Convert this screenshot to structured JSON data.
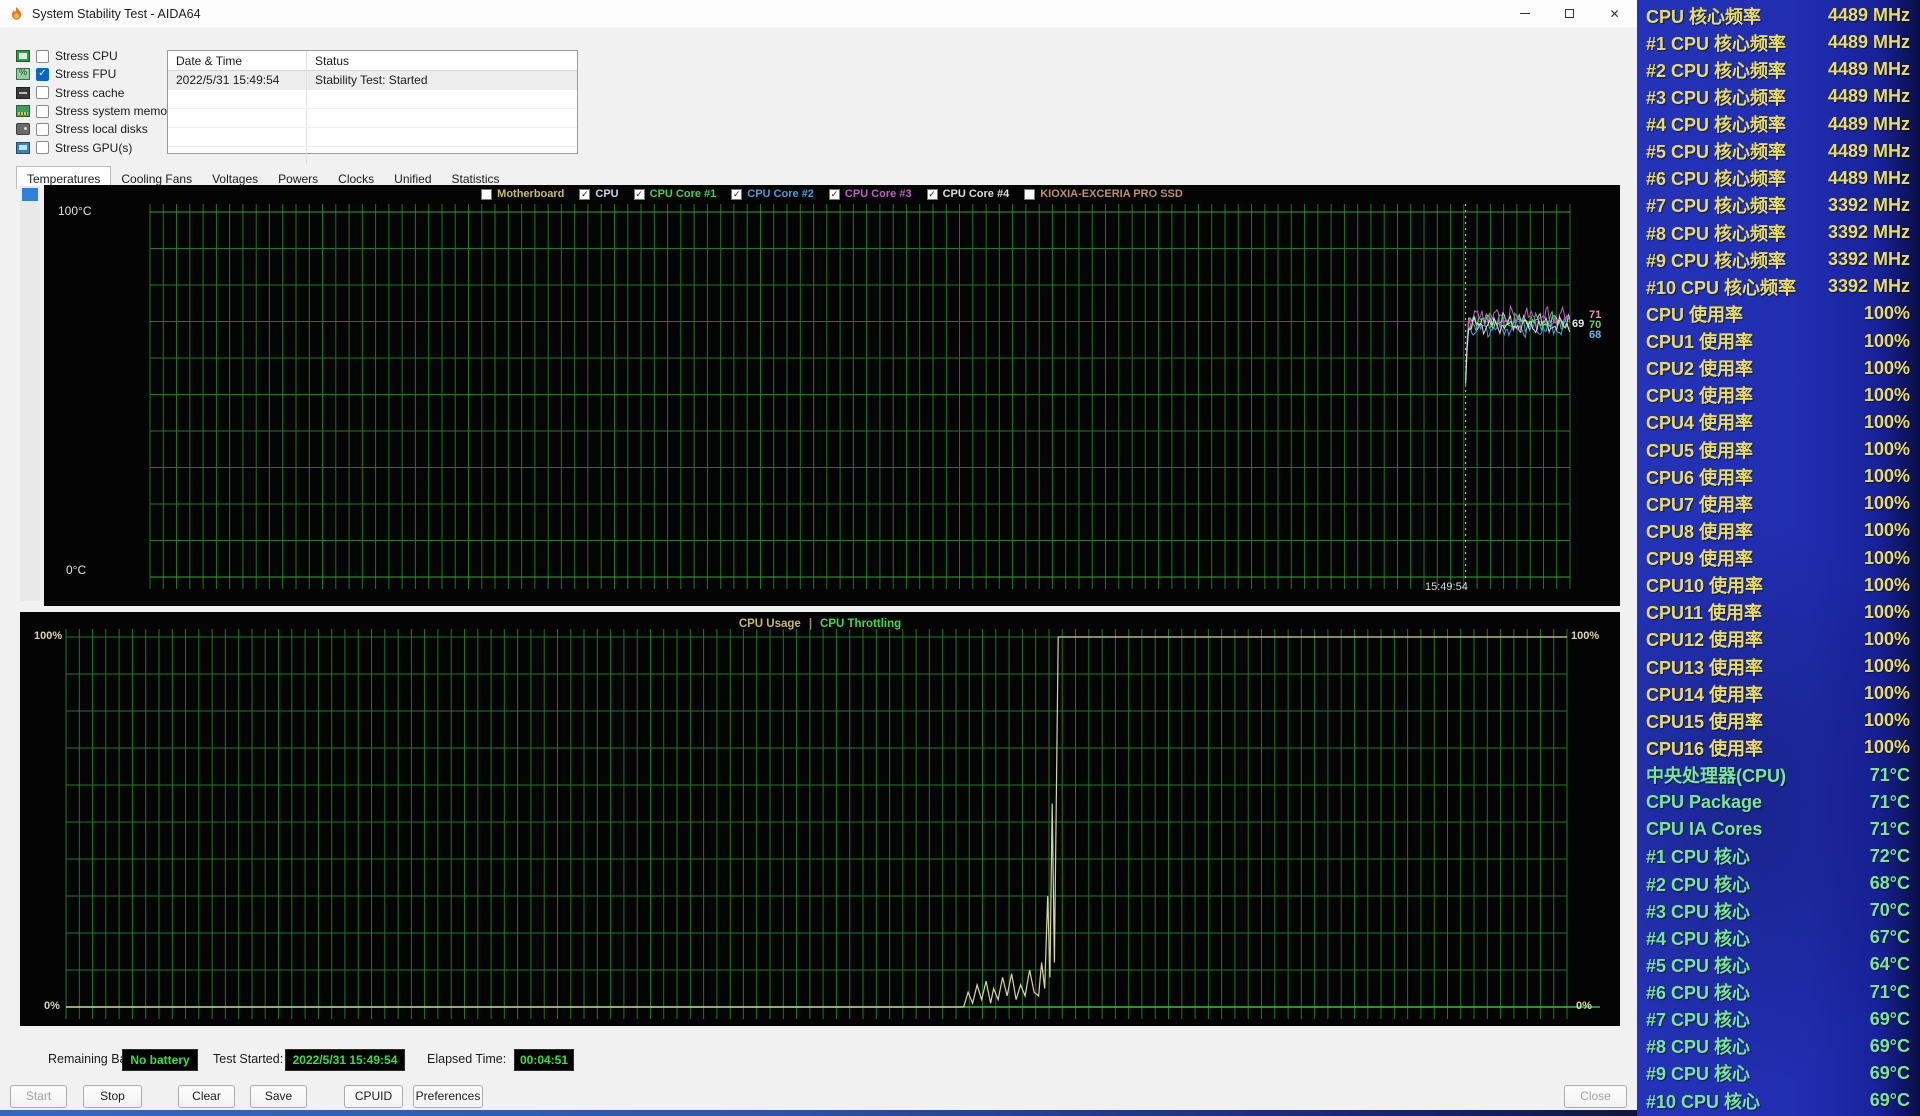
{
  "window": {
    "title": "System Stability Test - AIDA64"
  },
  "stress_options": [
    {
      "label": "Stress CPU",
      "checked": false,
      "icon": "cpu-icon"
    },
    {
      "label": "Stress FPU",
      "checked": true,
      "icon": "fpu-icon"
    },
    {
      "label": "Stress cache",
      "checked": false,
      "icon": "cache-icon"
    },
    {
      "label": "Stress system memory",
      "checked": false,
      "icon": "memory-icon"
    },
    {
      "label": "Stress local disks",
      "checked": false,
      "icon": "disk-icon"
    },
    {
      "label": "Stress GPU(s)",
      "checked": false,
      "icon": "gpu-icon"
    }
  ],
  "log_table": {
    "columns": [
      "Date & Time",
      "Status"
    ],
    "rows": [
      [
        "2022/5/31 15:49:54",
        "Stability Test: Started"
      ]
    ]
  },
  "tabs": [
    {
      "label": "Temperatures",
      "active": true
    },
    {
      "label": "Cooling Fans",
      "active": false
    },
    {
      "label": "Voltages",
      "active": false
    },
    {
      "label": "Powers",
      "active": false
    },
    {
      "label": "Clocks",
      "active": false
    },
    {
      "label": "Unified",
      "active": false
    },
    {
      "label": "Statistics",
      "active": false
    }
  ],
  "temp_chart": {
    "y_top_label": "100°C",
    "y_bottom_label": "0°C",
    "time_label": "15:49:54",
    "grid_color": "#1c7a1c",
    "legend": [
      {
        "label": "Motherboard",
        "checked": false,
        "color": "#c9bd62"
      },
      {
        "label": "CPU",
        "checked": true,
        "color": "#c3d6e8"
      },
      {
        "label": "CPU Core #1",
        "checked": true,
        "color": "#3bd54b"
      },
      {
        "label": "CPU Core #2",
        "checked": true,
        "color": "#3f9fe0"
      },
      {
        "label": "CPU Core #3",
        "checked": true,
        "color": "#c55bc5"
      },
      {
        "label": "CPU Core #4",
        "checked": true,
        "color": "#dcdcdc"
      },
      {
        "label": "KIOXIA-EXCERIA PRO SSD",
        "checked": false,
        "color": "#c08f68"
      }
    ],
    "series": [
      {
        "name": "CPU",
        "color": "#c3d6e8",
        "base": 70,
        "phase": 0.0,
        "amp": 1.0
      },
      {
        "name": "CPU Core #1",
        "color": "#3bd54b",
        "base": 70,
        "phase": 1.3,
        "amp": 1.1
      },
      {
        "name": "CPU Core #2",
        "color": "#3f9fe0",
        "base": 68,
        "phase": 2.1,
        "amp": 1.0
      },
      {
        "name": "CPU Core #3",
        "color": "#c55bc5",
        "base": 71,
        "phase": 3.4,
        "amp": 1.4
      },
      {
        "name": "CPU Core #4",
        "color": "#dcdcdc",
        "base": 69,
        "phase": 4.2,
        "amp": 1.0
      }
    ],
    "end_values": [
      {
        "value": "69",
        "color": "#e8e8e8"
      },
      {
        "value": "71",
        "color": "#ef93b3"
      },
      {
        "value": "70",
        "color": "#62d563"
      },
      {
        "value": "68",
        "color": "#58b9e8"
      }
    ]
  },
  "usage_chart": {
    "title_left": "CPU Usage",
    "title_separator": "|",
    "title_right": "CPU Throttling",
    "title_left_color": "#c8b966",
    "title_right_color": "#3bdc4e",
    "left_top_label": "100%",
    "left_bottom_label": "0%",
    "right_top_label": "100%",
    "right_bottom_label": "0%",
    "line_color": "#d6d89a",
    "line_points_pct": [
      [
        0,
        0
      ],
      [
        0.598,
        0
      ],
      [
        0.601,
        4
      ],
      [
        0.604,
        1
      ],
      [
        0.607,
        6
      ],
      [
        0.61,
        2
      ],
      [
        0.613,
        7
      ],
      [
        0.616,
        1
      ],
      [
        0.618,
        5
      ],
      [
        0.621,
        2
      ],
      [
        0.624,
        8
      ],
      [
        0.627,
        3
      ],
      [
        0.63,
        9
      ],
      [
        0.633,
        2
      ],
      [
        0.636,
        6
      ],
      [
        0.639,
        3
      ],
      [
        0.642,
        10
      ],
      [
        0.645,
        4
      ],
      [
        0.648,
        3
      ],
      [
        0.65,
        12
      ],
      [
        0.652,
        5
      ],
      [
        0.654,
        30
      ],
      [
        0.6555,
        8
      ],
      [
        0.657,
        55
      ],
      [
        0.6585,
        12
      ],
      [
        0.661,
        100
      ],
      [
        1,
        100
      ]
    ]
  },
  "status_bar": {
    "battery_label": "Remaining Battery:",
    "battery_value": "No battery",
    "test_started_label": "Test Started:",
    "test_started_value": "2022/5/31 15:49:54",
    "elapsed_label": "Elapsed Time:",
    "elapsed_value": "00:04:51"
  },
  "action_buttons": [
    {
      "label": "Start",
      "enabled": false
    },
    {
      "label": "Stop",
      "enabled": true
    },
    {
      "label": "Clear",
      "enabled": true
    },
    {
      "label": "Save",
      "enabled": true
    },
    {
      "label": "CPUID",
      "enabled": true
    },
    {
      "label": "Preferences",
      "enabled": true
    }
  ],
  "close_button": {
    "label": "Close",
    "enabled": false
  },
  "sidebar": {
    "yellow_color": "#e9dd5f",
    "green_color": "#79e890",
    "rows": [
      {
        "label": "CPU 核心频率",
        "value": "4489 MHz",
        "type": "freq"
      },
      {
        "label": "#1 CPU 核心频率",
        "value": "4489 MHz",
        "type": "freq"
      },
      {
        "label": "#2 CPU 核心频率",
        "value": "4489 MHz",
        "type": "freq"
      },
      {
        "label": "#3 CPU 核心频率",
        "value": "4489 MHz",
        "type": "freq"
      },
      {
        "label": "#4 CPU 核心频率",
        "value": "4489 MHz",
        "type": "freq"
      },
      {
        "label": "#5 CPU 核心频率",
        "value": "4489 MHz",
        "type": "freq"
      },
      {
        "label": "#6 CPU 核心频率",
        "value": "4489 MHz",
        "type": "freq"
      },
      {
        "label": "#7 CPU 核心频率",
        "value": "3392 MHz",
        "type": "freq"
      },
      {
        "label": "#8 CPU 核心频率",
        "value": "3392 MHz",
        "type": "freq"
      },
      {
        "label": "#9 CPU 核心频率",
        "value": "3392 MHz",
        "type": "freq"
      },
      {
        "label": "#10 CPU 核心频率",
        "value": "3392 MHz",
        "type": "freq"
      },
      {
        "label": "CPU 使用率",
        "value": "100%",
        "type": "usage"
      },
      {
        "label": "CPU1 使用率",
        "value": "100%",
        "type": "usage"
      },
      {
        "label": "CPU2 使用率",
        "value": "100%",
        "type": "usage"
      },
      {
        "label": "CPU3 使用率",
        "value": "100%",
        "type": "usage"
      },
      {
        "label": "CPU4 使用率",
        "value": "100%",
        "type": "usage"
      },
      {
        "label": "CPU5 使用率",
        "value": "100%",
        "type": "usage"
      },
      {
        "label": "CPU6 使用率",
        "value": "100%",
        "type": "usage"
      },
      {
        "label": "CPU7 使用率",
        "value": "100%",
        "type": "usage"
      },
      {
        "label": "CPU8 使用率",
        "value": "100%",
        "type": "usage"
      },
      {
        "label": "CPU9 使用率",
        "value": "100%",
        "type": "usage"
      },
      {
        "label": "CPU10 使用率",
        "value": "100%",
        "type": "usage"
      },
      {
        "label": "CPU11 使用率",
        "value": "100%",
        "type": "usage"
      },
      {
        "label": "CPU12 使用率",
        "value": "100%",
        "type": "usage"
      },
      {
        "label": "CPU13 使用率",
        "value": "100%",
        "type": "usage"
      },
      {
        "label": "CPU14 使用率",
        "value": "100%",
        "type": "usage"
      },
      {
        "label": "CPU15 使用率",
        "value": "100%",
        "type": "usage"
      },
      {
        "label": "CPU16 使用率",
        "value": "100%",
        "type": "usage"
      },
      {
        "label": "中央处理器(CPU)",
        "value": "71°C",
        "type": "temp"
      },
      {
        "label": "CPU Package",
        "value": "71°C",
        "type": "temp"
      },
      {
        "label": "CPU IA Cores",
        "value": "71°C",
        "type": "temp"
      },
      {
        "label": "#1 CPU 核心",
        "value": "72°C",
        "type": "temp"
      },
      {
        "label": "#2 CPU 核心",
        "value": "68°C",
        "type": "temp"
      },
      {
        "label": "#3 CPU 核心",
        "value": "70°C",
        "type": "temp"
      },
      {
        "label": "#4 CPU 核心",
        "value": "67°C",
        "type": "temp"
      },
      {
        "label": "#5 CPU 核心",
        "value": "64°C",
        "type": "temp"
      },
      {
        "label": "#6 CPU 核心",
        "value": "71°C",
        "type": "temp"
      },
      {
        "label": "#7 CPU 核心",
        "value": "69°C",
        "type": "temp"
      },
      {
        "label": "#8 CPU 核心",
        "value": "69°C",
        "type": "temp"
      },
      {
        "label": "#9 CPU 核心",
        "value": "69°C",
        "type": "temp"
      },
      {
        "label": "#10 CPU 核心",
        "value": "69°C",
        "type": "temp"
      }
    ]
  }
}
